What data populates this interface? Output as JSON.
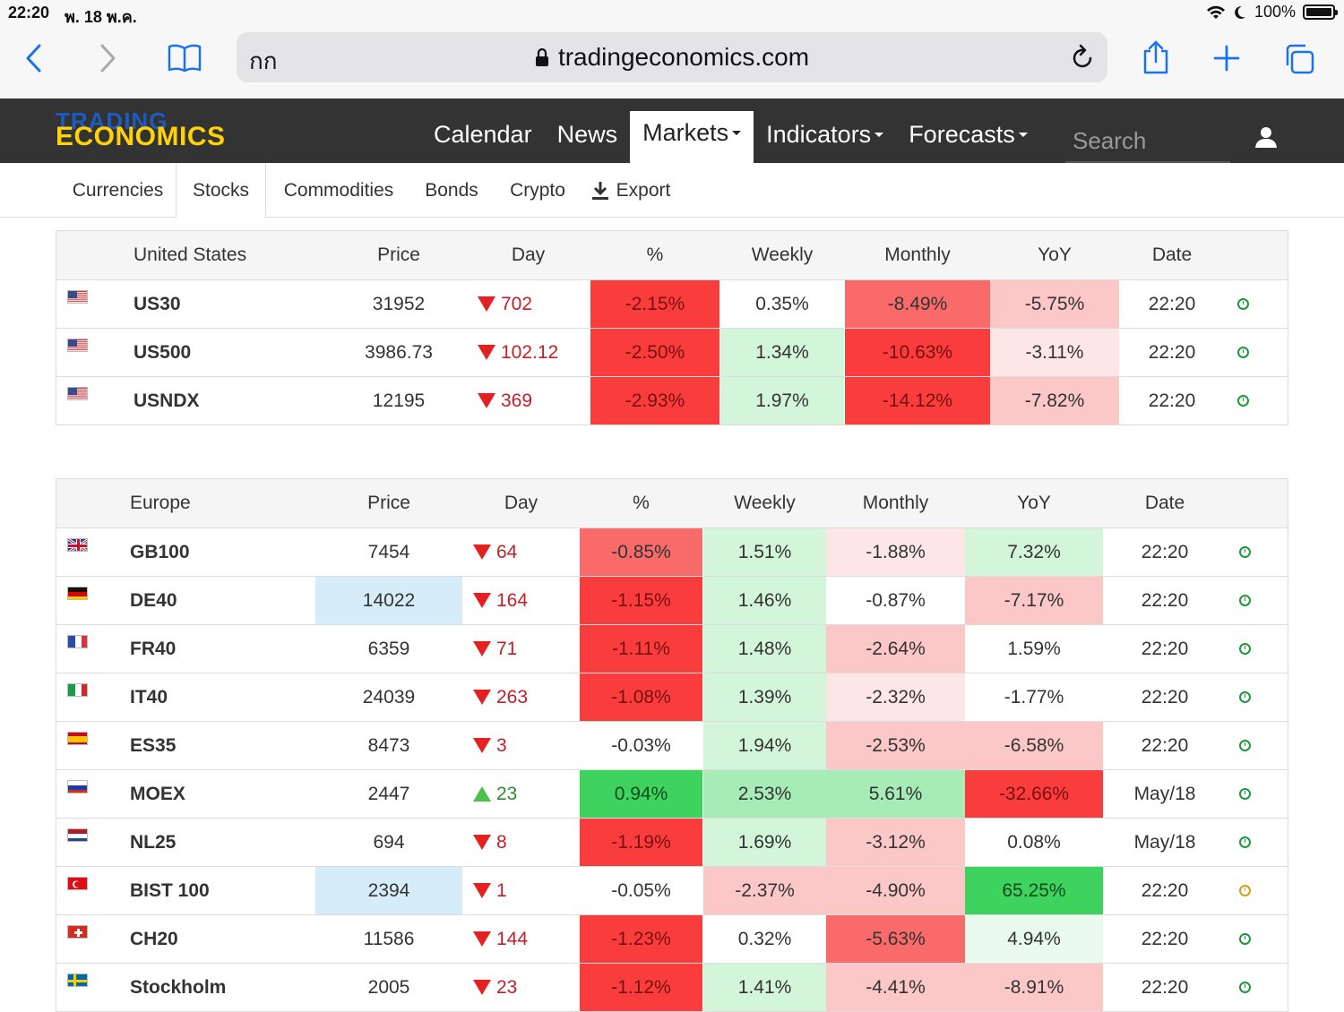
{
  "status_bar": {
    "time": "22:20",
    "date": "พ. 18 พ.ค.",
    "battery": "100%"
  },
  "browser": {
    "text_size_label": "กก",
    "url": "tradingeconomics.com"
  },
  "site": {
    "logo_line1": "TRADING",
    "logo_line2": "ECONOMICS",
    "nav": [
      {
        "label": "Calendar",
        "dropdown": false,
        "active": false
      },
      {
        "label": "News",
        "dropdown": false,
        "active": false
      },
      {
        "label": "Markets",
        "dropdown": true,
        "active": true
      },
      {
        "label": "Indicators",
        "dropdown": true,
        "active": false
      },
      {
        "label": "Forecasts",
        "dropdown": true,
        "active": false
      }
    ],
    "search_placeholder": "Search"
  },
  "subnav": {
    "items": [
      "Currencies",
      "Stocks",
      "Commodities",
      "Bonds",
      "Crypto"
    ],
    "active": "Stocks",
    "export_label": "Export"
  },
  "colors": {
    "strong_red": "#f93d3d",
    "medium_red": "#f96a6a",
    "light_red": "#fbc7c7",
    "pale_red": "#fde6e6",
    "strong_green": "#3ed35e",
    "medium_green": "#a7ecb6",
    "light_green": "#d3f5da",
    "pale_green": "#eafbee",
    "highlight_blue": "#d6ecf8",
    "neutral": "#ffffff"
  },
  "tables": [
    {
      "region": "United States",
      "columns": [
        "Price",
        "Day",
        "%",
        "Weekly",
        "Monthly",
        "YoY",
        "Date"
      ],
      "rows": [
        {
          "flag": "us",
          "symbol": "US30",
          "price": "31952",
          "day_dir": "down",
          "day": "702",
          "pct": "-2.15%",
          "weekly": "0.35%",
          "monthly": "-8.49%",
          "yoy": "-5.75%",
          "date": "22:20",
          "status": "green",
          "bg": {
            "price": "neutral",
            "pct": "strong_red",
            "weekly": "neutral",
            "monthly": "medium_red",
            "yoy": "light_red"
          }
        },
        {
          "flag": "us",
          "symbol": "US500",
          "price": "3986.73",
          "day_dir": "down",
          "day": "102.12",
          "pct": "-2.50%",
          "weekly": "1.34%",
          "monthly": "-10.63%",
          "yoy": "-3.11%",
          "date": "22:20",
          "status": "green",
          "bg": {
            "price": "neutral",
            "pct": "strong_red",
            "weekly": "light_green",
            "monthly": "strong_red",
            "yoy": "pale_red"
          }
        },
        {
          "flag": "us",
          "symbol": "USNDX",
          "price": "12195",
          "day_dir": "down",
          "day": "369",
          "pct": "-2.93%",
          "weekly": "1.97%",
          "monthly": "-14.12%",
          "yoy": "-7.82%",
          "date": "22:20",
          "status": "green",
          "bg": {
            "price": "neutral",
            "pct": "strong_red",
            "weekly": "light_green",
            "monthly": "strong_red",
            "yoy": "light_red"
          }
        }
      ]
    },
    {
      "region": "Europe",
      "columns": [
        "Price",
        "Day",
        "%",
        "Weekly",
        "Monthly",
        "YoY",
        "Date"
      ],
      "rows": [
        {
          "flag": "gb",
          "symbol": "GB100",
          "price": "7454",
          "day_dir": "down",
          "day": "64",
          "pct": "-0.85%",
          "weekly": "1.51%",
          "monthly": "-1.88%",
          "yoy": "7.32%",
          "date": "22:20",
          "status": "green",
          "bg": {
            "price": "neutral",
            "pct": "medium_red",
            "weekly": "light_green",
            "monthly": "pale_red",
            "yoy": "light_green"
          }
        },
        {
          "flag": "de",
          "symbol": "DE40",
          "price": "14022",
          "day_dir": "down",
          "day": "164",
          "pct": "-1.15%",
          "weekly": "1.46%",
          "monthly": "-0.87%",
          "yoy": "-7.17%",
          "date": "22:20",
          "status": "green",
          "bg": {
            "price": "highlight_blue",
            "pct": "strong_red",
            "weekly": "light_green",
            "monthly": "neutral",
            "yoy": "light_red"
          }
        },
        {
          "flag": "fr",
          "symbol": "FR40",
          "price": "6359",
          "day_dir": "down",
          "day": "71",
          "pct": "-1.11%",
          "weekly": "1.48%",
          "monthly": "-2.64%",
          "yoy": "1.59%",
          "date": "22:20",
          "status": "green",
          "bg": {
            "price": "neutral",
            "pct": "strong_red",
            "weekly": "light_green",
            "monthly": "light_red",
            "yoy": "neutral"
          }
        },
        {
          "flag": "it",
          "symbol": "IT40",
          "price": "24039",
          "day_dir": "down",
          "day": "263",
          "pct": "-1.08%",
          "weekly": "1.39%",
          "monthly": "-2.32%",
          "yoy": "-1.77%",
          "date": "22:20",
          "status": "green",
          "bg": {
            "price": "neutral",
            "pct": "strong_red",
            "weekly": "light_green",
            "monthly": "pale_red",
            "yoy": "neutral"
          }
        },
        {
          "flag": "es",
          "symbol": "ES35",
          "price": "8473",
          "day_dir": "down",
          "day": "3",
          "pct": "-0.03%",
          "weekly": "1.94%",
          "monthly": "-2.53%",
          "yoy": "-6.58%",
          "date": "22:20",
          "status": "green",
          "bg": {
            "price": "neutral",
            "pct": "neutral",
            "weekly": "light_green",
            "monthly": "light_red",
            "yoy": "light_red"
          }
        },
        {
          "flag": "ru",
          "symbol": "MOEX",
          "price": "2447",
          "day_dir": "up",
          "day": "23",
          "pct": "0.94%",
          "weekly": "2.53%",
          "monthly": "5.61%",
          "yoy": "-32.66%",
          "date": "May/18",
          "status": "green",
          "bg": {
            "price": "neutral",
            "pct": "strong_green",
            "weekly": "medium_green",
            "monthly": "medium_green",
            "yoy": "strong_red"
          }
        },
        {
          "flag": "nl",
          "symbol": "NL25",
          "price": "694",
          "day_dir": "down",
          "day": "8",
          "pct": "-1.19%",
          "weekly": "1.69%",
          "monthly": "-3.12%",
          "yoy": "0.08%",
          "date": "May/18",
          "status": "green",
          "bg": {
            "price": "neutral",
            "pct": "strong_red",
            "weekly": "light_green",
            "monthly": "light_red",
            "yoy": "neutral"
          }
        },
        {
          "flag": "tr",
          "symbol": "BIST 100",
          "price": "2394",
          "day_dir": "down",
          "day": "1",
          "pct": "-0.05%",
          "weekly": "-2.37%",
          "monthly": "-4.90%",
          "yoy": "65.25%",
          "date": "22:20",
          "status": "amber",
          "bg": {
            "price": "highlight_blue",
            "pct": "neutral",
            "weekly": "light_red",
            "monthly": "light_red",
            "yoy": "strong_green"
          }
        },
        {
          "flag": "ch",
          "symbol": "CH20",
          "price": "11586",
          "day_dir": "down",
          "day": "144",
          "pct": "-1.23%",
          "weekly": "0.32%",
          "monthly": "-5.63%",
          "yoy": "4.94%",
          "date": "22:20",
          "status": "green",
          "bg": {
            "price": "neutral",
            "pct": "strong_red",
            "weekly": "neutral",
            "monthly": "medium_red",
            "yoy": "pale_green"
          }
        },
        {
          "flag": "se",
          "symbol": "Stockholm",
          "price": "2005",
          "day_dir": "down",
          "day": "23",
          "pct": "-1.12%",
          "weekly": "1.41%",
          "monthly": "-4.41%",
          "yoy": "-8.91%",
          "date": "22:20",
          "status": "green",
          "bg": {
            "price": "neutral",
            "pct": "strong_red",
            "weekly": "light_green",
            "monthly": "light_red",
            "yoy": "light_red"
          }
        }
      ]
    }
  ]
}
